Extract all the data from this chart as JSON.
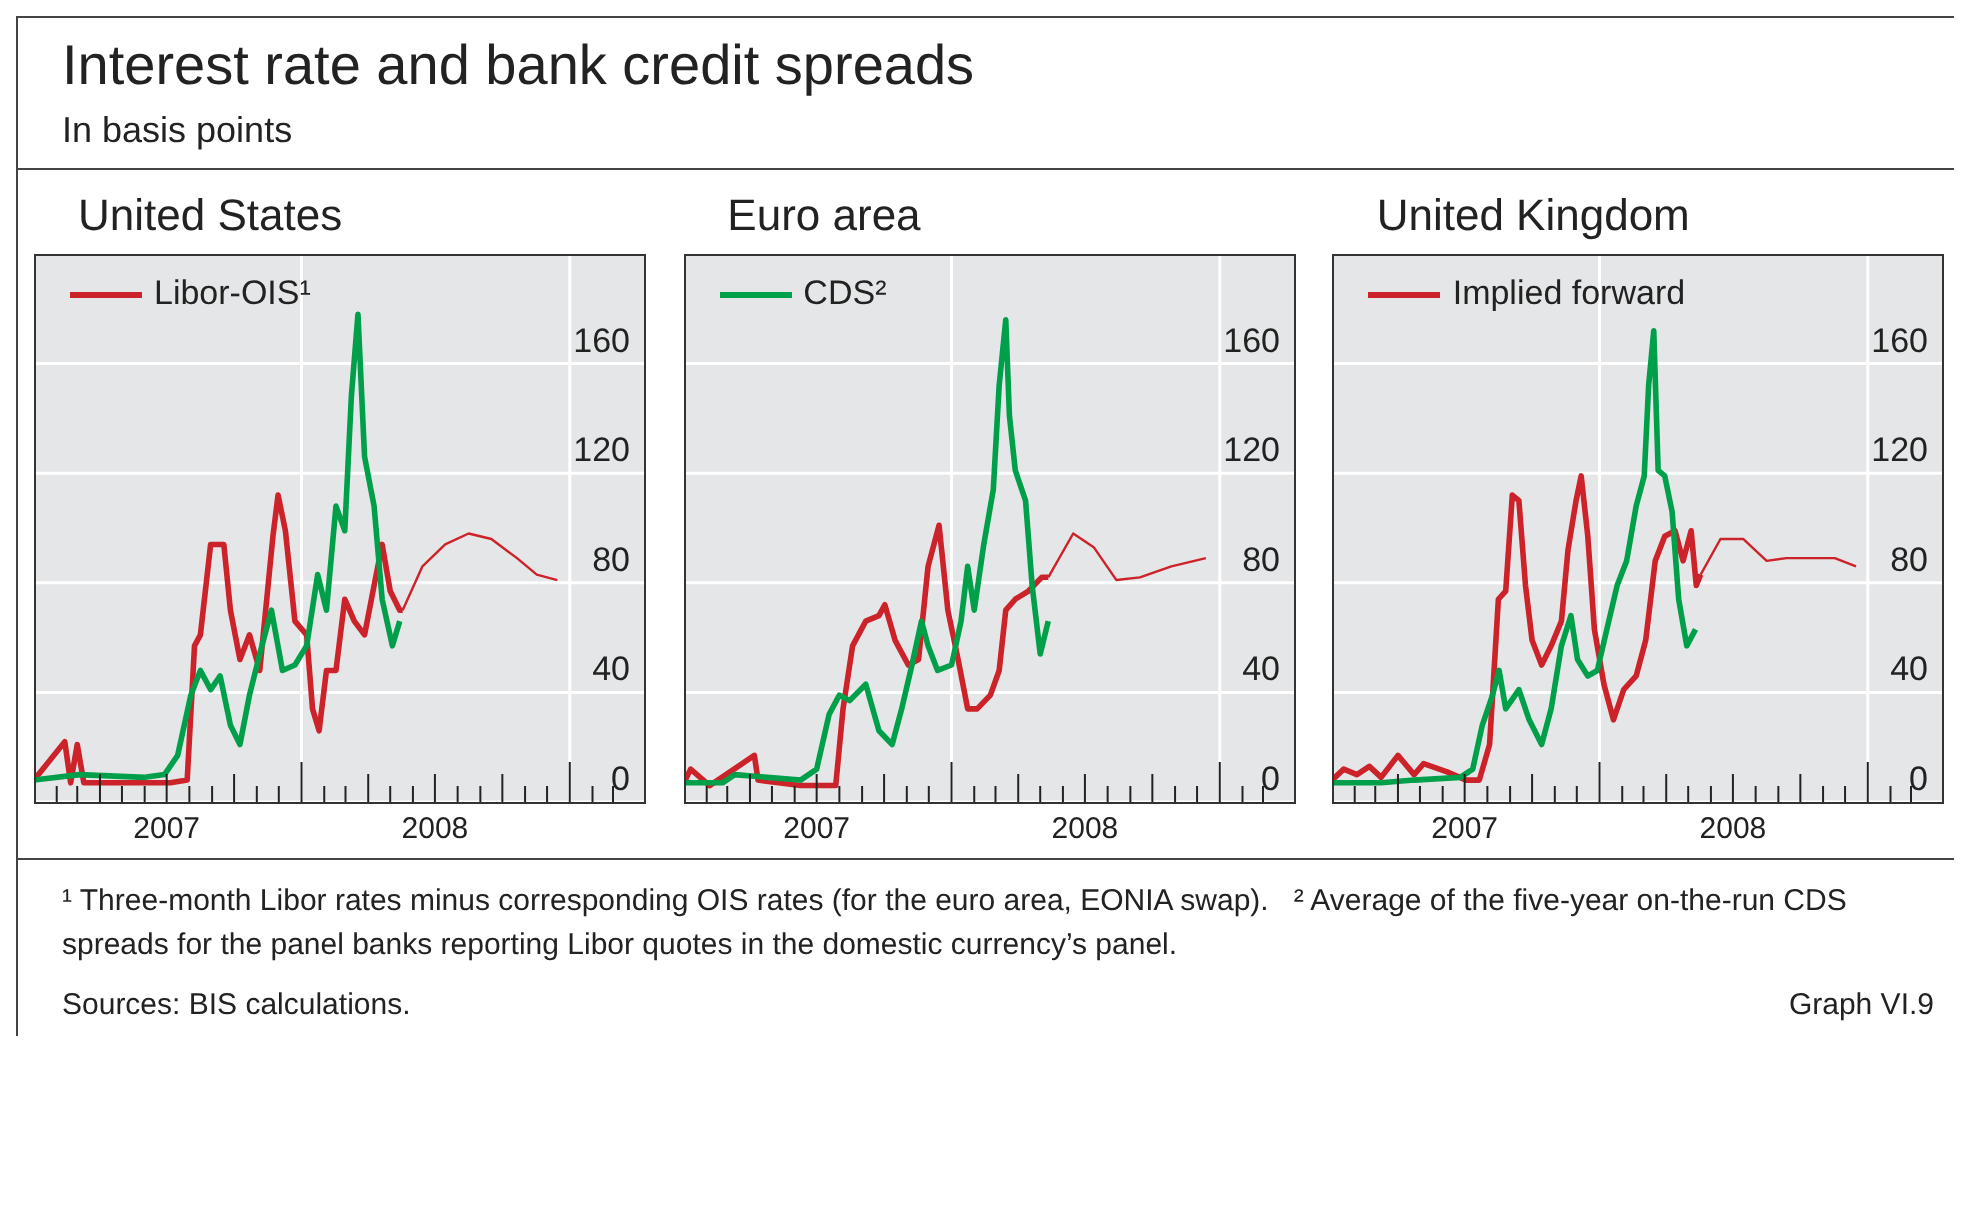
{
  "chart_data": [
    {
      "type": "line",
      "title": "United States",
      "annotations": [
        "Interest rate and bank credit spreads",
        "In basis points"
      ],
      "xlim": [
        "2007-01-01",
        "2009-04-15"
      ],
      "ylim": [
        0,
        200
      ],
      "yticks": [
        0,
        40,
        80,
        120,
        160
      ],
      "grid": true,
      "legend": "top left",
      "xticks": [
        {
          "value": "2007-01-01",
          "label": null
        },
        {
          "value": "2007-02-01",
          "label": null
        },
        {
          "value": "2007-03-01",
          "label": null
        },
        {
          "value": "2007-04-01",
          "label": null
        },
        {
          "value": "2007-05-01",
          "label": null
        },
        {
          "value": "2007-06-01",
          "label": null
        },
        {
          "value": "2007-07-01",
          "label": "2007"
        },
        {
          "value": "2007-08-01",
          "label": null
        },
        {
          "value": "2007-09-01",
          "label": null
        },
        {
          "value": "2007-10-01",
          "label": null
        },
        {
          "value": "2007-11-01",
          "label": null
        },
        {
          "value": "2007-12-01",
          "label": null
        },
        {
          "value": "2008-01-01",
          "label": null
        },
        {
          "value": "2008-02-01",
          "label": null
        },
        {
          "value": "2008-03-01",
          "label": null
        },
        {
          "value": "2008-04-01",
          "label": null
        },
        {
          "value": "2008-05-01",
          "label": null
        },
        {
          "value": "2008-06-01",
          "label": null
        },
        {
          "value": "2008-07-01",
          "label": "2008"
        },
        {
          "value": "2008-08-01",
          "label": null
        },
        {
          "value": "2008-09-01",
          "label": null
        },
        {
          "value": "2008-10-01",
          "label": null
        },
        {
          "value": "2008-11-01",
          "label": null
        },
        {
          "value": "2008-12-01",
          "label": null
        },
        {
          "value": "2009-01-01",
          "label": null
        },
        {
          "value": "2009-02-01",
          "label": null
        },
        {
          "value": "2009-03-01",
          "label": null
        }
      ],
      "series": [
        {
          "name": "Libor-OIS¹",
          "color": "#cc2229",
          "x": [
            "2007-01-01",
            "2007-02-12",
            "2007-02-20",
            "2007-03-01",
            "2007-03-10",
            "2007-07-06",
            "2007-07-29",
            "2007-08-08",
            "2007-08-16",
            "2007-08-30",
            "2007-09-17",
            "2007-09-26",
            "2007-10-09",
            "2007-10-22",
            "2007-11-05",
            "2007-11-23",
            "2007-11-30",
            "2007-12-10",
            "2007-12-23",
            "2008-01-08",
            "2008-01-16",
            "2008-01-25",
            "2008-02-04",
            "2008-02-17",
            "2008-02-29",
            "2008-03-13",
            "2008-03-27",
            "2008-04-09",
            "2008-04-20",
            "2008-05-01",
            "2008-05-14",
            "2008-05-18"
          ],
          "values": [
            8,
            22,
            7,
            21,
            7,
            7,
            8,
            57,
            61,
            94,
            94,
            70,
            52,
            61,
            48,
            97,
            112,
            99,
            66,
            61,
            34,
            26,
            48,
            48,
            74,
            66,
            61,
            79,
            94,
            77,
            70,
            70
          ]
        },
        {
          "color": "#00a04b",
          "x": [
            "2007-01-01",
            "2007-03-04",
            "2007-06-01",
            "2007-06-28",
            "2007-07-16",
            "2007-08-03",
            "2007-08-16",
            "2007-08-30",
            "2007-09-12",
            "2007-09-26",
            "2007-10-09",
            "2007-10-22",
            "2007-11-05",
            "2007-11-21",
            "2007-12-06",
            "2007-12-23",
            "2008-01-08",
            "2008-01-23",
            "2008-02-04",
            "2008-02-17",
            "2008-02-29",
            "2008-03-09",
            "2008-03-18",
            "2008-03-27",
            "2008-04-09",
            "2008-04-20",
            "2008-05-04",
            "2008-05-14"
          ],
          "values": [
            8,
            10,
            9,
            10,
            17,
            39,
            48,
            41,
            46,
            28,
            21,
            39,
            54,
            70,
            48,
            50,
            57,
            83,
            70,
            108,
            99,
            148,
            178,
            126,
            108,
            74,
            57,
            66
          ]
        },
        {
          "color": "#cc2229",
          "x": [
            "2008-05-18",
            "2008-06-14",
            "2008-07-15",
            "2008-08-16",
            "2008-09-16",
            "2008-10-21",
            "2008-11-17",
            "2008-12-15"
          ],
          "values": [
            70,
            86,
            94,
            98,
            96,
            89,
            83,
            81
          ]
        }
      ]
    },
    {
      "type": "line",
      "title": "Euro area",
      "xlim": [
        "2007-01-01",
        "2009-04-15"
      ],
      "ylim": [
        0,
        200
      ],
      "yticks": [
        0,
        40,
        80,
        120,
        160
      ],
      "grid": true,
      "legend": "top left",
      "xticks": [
        {
          "value": "2007-01-01",
          "label": null
        },
        {
          "value": "2007-02-01",
          "label": null
        },
        {
          "value": "2007-03-01",
          "label": null
        },
        {
          "value": "2007-04-01",
          "label": null
        },
        {
          "value": "2007-05-01",
          "label": null
        },
        {
          "value": "2007-06-01",
          "label": null
        },
        {
          "value": "2007-07-01",
          "label": "2007"
        },
        {
          "value": "2007-08-01",
          "label": null
        },
        {
          "value": "2007-09-01",
          "label": null
        },
        {
          "value": "2007-10-01",
          "label": null
        },
        {
          "value": "2007-11-01",
          "label": null
        },
        {
          "value": "2007-12-01",
          "label": null
        },
        {
          "value": "2008-01-01",
          "label": null
        },
        {
          "value": "2008-02-01",
          "label": null
        },
        {
          "value": "2008-03-01",
          "label": null
        },
        {
          "value": "2008-04-01",
          "label": null
        },
        {
          "value": "2008-05-01",
          "label": null
        },
        {
          "value": "2008-06-01",
          "label": null
        },
        {
          "value": "2008-07-01",
          "label": "2008"
        },
        {
          "value": "2008-08-01",
          "label": null
        },
        {
          "value": "2008-09-01",
          "label": null
        },
        {
          "value": "2008-10-01",
          "label": null
        },
        {
          "value": "2008-11-01",
          "label": null
        },
        {
          "value": "2008-12-01",
          "label": null
        },
        {
          "value": "2009-01-01",
          "label": null
        },
        {
          "value": "2009-02-01",
          "label": null
        },
        {
          "value": "2009-03-01",
          "label": null
        }
      ],
      "series": [
        {
          "color": "#cc2229",
          "x": [
            "2007-01-01",
            "2007-01-10",
            "2007-02-05",
            "2007-04-07",
            "2007-04-12",
            "2007-06-09",
            "2007-07-27",
            "2007-08-06",
            "2007-08-19",
            "2007-09-06",
            "2007-09-24",
            "2007-10-02",
            "2007-10-16",
            "2007-11-03",
            "2007-11-17",
            "2007-11-30",
            "2007-12-15",
            "2007-12-27",
            "2008-01-10",
            "2008-01-23",
            "2008-02-05",
            "2008-02-23",
            "2008-03-06",
            "2008-03-15",
            "2008-03-28",
            "2008-04-15",
            "2008-05-03",
            "2008-05-12"
          ],
          "values": [
            7,
            12,
            6,
            17,
            8,
            6,
            6,
            34,
            57,
            66,
            68,
            72,
            59,
            50,
            52,
            86,
            101,
            70,
            52,
            34,
            34,
            39,
            48,
            70,
            74,
            77,
            82,
            82
          ]
        },
        {
          "name": "CDS²",
          "color": "#00a04b",
          "x": [
            "2007-01-01",
            "2007-02-23",
            "2007-03-11",
            "2007-04-25",
            "2007-06-09",
            "2007-07-01",
            "2007-07-18",
            "2007-08-01",
            "2007-08-15",
            "2007-09-06",
            "2007-09-24",
            "2007-10-12",
            "2007-10-25",
            "2007-11-08",
            "2007-11-21",
            "2007-11-30",
            "2007-12-13",
            "2008-01-01",
            "2008-01-14",
            "2008-01-23",
            "2008-02-01",
            "2008-02-14",
            "2008-02-27",
            "2008-03-06",
            "2008-03-15",
            "2008-03-20",
            "2008-03-28",
            "2008-04-11",
            "2008-04-20",
            "2008-05-01",
            "2008-05-12"
          ],
          "values": [
            7,
            7,
            10,
            9,
            8,
            12,
            32,
            39,
            37,
            43,
            26,
            21,
            34,
            50,
            66,
            57,
            48,
            50,
            66,
            86,
            70,
            94,
            114,
            152,
            176,
            141,
            121,
            110,
            79,
            54,
            66
          ]
        },
        {
          "color": "#cc2229",
          "x": [
            "2008-05-12",
            "2008-06-15",
            "2008-07-13",
            "2008-08-13",
            "2008-09-14",
            "2008-10-27",
            "2008-12-13"
          ],
          "values": [
            82,
            98,
            93,
            81,
            82,
            86,
            89
          ]
        }
      ]
    },
    {
      "type": "line",
      "title": "United Kingdom",
      "annotations": [
        "¹ Three-month Libor rates minus corresponding OIS rates (for the euro area, EONIA swap).",
        "² Average of the five-year on-the-run CDS spreads for the panel banks reporting Libor quotes in the domestic currency’s panel.",
        "Sources: BIS calculations.",
        "Graph VI.9"
      ],
      "xlim": [
        "2007-01-01",
        "2009-04-15"
      ],
      "ylim": [
        0,
        200
      ],
      "yticks": [
        0,
        40,
        80,
        120,
        160
      ],
      "grid": true,
      "legend": "top left",
      "xticks": [
        {
          "value": "2007-01-01",
          "label": null
        },
        {
          "value": "2007-02-01",
          "label": null
        },
        {
          "value": "2007-03-01",
          "label": null
        },
        {
          "value": "2007-04-01",
          "label": null
        },
        {
          "value": "2007-05-01",
          "label": null
        },
        {
          "value": "2007-06-01",
          "label": null
        },
        {
          "value": "2007-07-01",
          "label": "2007"
        },
        {
          "value": "2007-08-01",
          "label": null
        },
        {
          "value": "2007-09-01",
          "label": null
        },
        {
          "value": "2007-10-01",
          "label": null
        },
        {
          "value": "2007-11-01",
          "label": null
        },
        {
          "value": "2007-12-01",
          "label": null
        },
        {
          "value": "2008-01-01",
          "label": null
        },
        {
          "value": "2008-02-01",
          "label": null
        },
        {
          "value": "2008-03-01",
          "label": null
        },
        {
          "value": "2008-04-01",
          "label": null
        },
        {
          "value": "2008-05-01",
          "label": null
        },
        {
          "value": "2008-06-01",
          "label": null
        },
        {
          "value": "2008-07-01",
          "label": "2008"
        },
        {
          "value": "2008-08-01",
          "label": null
        },
        {
          "value": "2008-09-01",
          "label": null
        },
        {
          "value": "2008-10-01",
          "label": null
        },
        {
          "value": "2008-11-01",
          "label": null
        },
        {
          "value": "2008-12-01",
          "label": null
        },
        {
          "value": "2009-01-01",
          "label": null
        },
        {
          "value": "2009-02-01",
          "label": null
        },
        {
          "value": "2009-03-01",
          "label": null
        }
      ],
      "series": [
        {
          "color": "#cc2229",
          "x": [
            "2007-01-01",
            "2007-01-17",
            "2007-02-04",
            "2007-02-21",
            "2007-03-09",
            "2007-04-01",
            "2007-04-23",
            "2007-05-06",
            "2007-06-07",
            "2007-07-03",
            "2007-07-21",
            "2007-08-04",
            "2007-08-16",
            "2007-08-26",
            "2007-09-04",
            "2007-09-13",
            "2007-09-22",
            "2007-10-01",
            "2007-10-14",
            "2007-10-27",
            "2007-11-10",
            "2007-11-19",
            "2007-11-30",
            "2007-12-07",
            "2007-12-16",
            "2007-12-25",
            "2008-01-07",
            "2008-01-20",
            "2008-02-03",
            "2008-02-20",
            "2008-03-04",
            "2008-03-17",
            "2008-03-30",
            "2008-04-13",
            "2008-04-24",
            "2008-05-05",
            "2008-05-12",
            "2008-05-18"
          ],
          "values": [
            8,
            12,
            10,
            13,
            9,
            17,
            10,
            14,
            11,
            8,
            8,
            21,
            74,
            77,
            112,
            110,
            79,
            59,
            50,
            57,
            66,
            92,
            110,
            119,
            97,
            63,
            43,
            30,
            41,
            46,
            59,
            88,
            97,
            99,
            88,
            99,
            79,
            83
          ]
        },
        {
          "color": "#00a04b",
          "x": [
            "2007-01-01",
            "2007-03-09",
            "2007-04-23",
            "2007-06-25",
            "2007-07-12",
            "2007-07-25",
            "2007-08-08",
            "2007-08-17",
            "2007-08-26",
            "2007-09-13",
            "2007-09-27",
            "2007-10-14",
            "2007-10-27",
            "2007-11-10",
            "2007-11-23",
            "2007-12-02",
            "2007-12-16",
            "2007-12-29",
            "2008-01-11",
            "2008-01-25",
            "2008-02-07",
            "2008-02-20",
            "2008-03-02",
            "2008-03-08",
            "2008-03-15",
            "2008-03-21",
            "2008-03-30",
            "2008-04-09",
            "2008-04-18",
            "2008-04-29",
            "2008-05-11"
          ],
          "values": [
            7,
            7,
            8,
            9,
            12,
            28,
            39,
            48,
            34,
            41,
            30,
            21,
            34,
            57,
            68,
            52,
            46,
            48,
            63,
            79,
            88,
            108,
            119,
            152,
            172,
            121,
            119,
            106,
            74,
            57,
            63
          ]
        },
        {
          "name": "Implied forward",
          "color": "#cc2229",
          "x": [
            "2008-05-18",
            "2008-06-14",
            "2008-07-15",
            "2008-08-16",
            "2008-09-12",
            "2008-10-17",
            "2008-11-17",
            "2008-12-16"
          ],
          "values": [
            83,
            96,
            96,
            88,
            89,
            89,
            89,
            86
          ]
        }
      ]
    }
  ]
}
